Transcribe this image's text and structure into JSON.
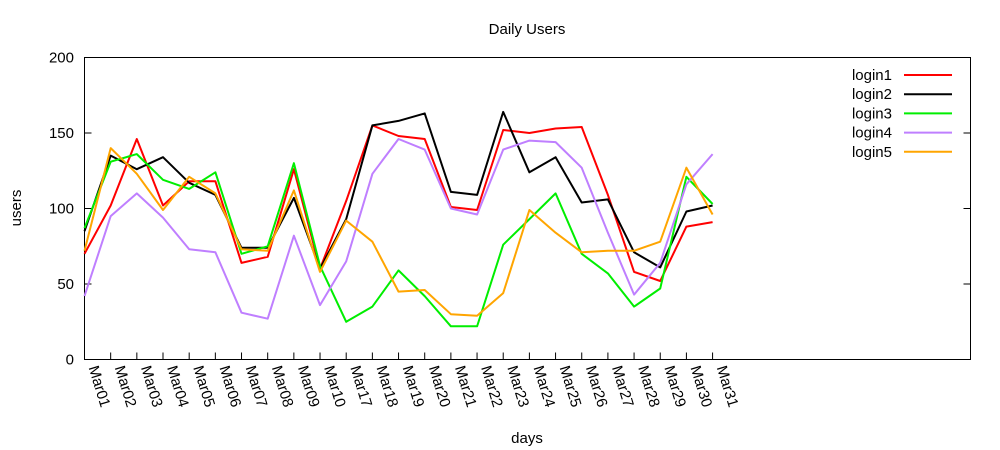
{
  "chart_data": {
    "type": "line",
    "title": "Daily Users",
    "xlabel": "days",
    "ylabel": "users",
    "ylim": [
      0,
      200
    ],
    "yticks": [
      0,
      50,
      100,
      150,
      200
    ],
    "grid": false,
    "legend_position": "top-right",
    "categories": [
      "Mar01",
      "Mar02",
      "Mar03",
      "Mar04",
      "Mar05",
      "Mar06",
      "Mar07",
      "Mar08",
      "Mar09",
      "Mar10",
      "Mar17",
      "Mar18",
      "Mar19",
      "Mar20",
      "Mar21",
      "Mar22",
      "Mar23",
      "Mar24",
      "Mar25",
      "Mar26",
      "Mar27",
      "Mar28",
      "Mar29",
      "Mar30",
      "Mar31"
    ],
    "series": [
      {
        "name": "login1",
        "color": "#ff0000",
        "values": [
          70,
          102,
          146,
          102,
          118,
          118,
          64,
          68,
          126,
          60,
          105,
          155,
          148,
          146,
          101,
          99,
          152,
          150,
          153,
          154,
          109,
          58,
          52,
          88,
          91
        ]
      },
      {
        "name": "login2",
        "color": "#000000",
        "values": [
          85,
          135,
          126,
          134,
          117,
          109,
          74,
          74,
          107,
          60,
          93,
          155,
          158,
          163,
          111,
          109,
          164,
          124,
          134,
          104,
          106,
          71,
          61,
          98,
          102
        ]
      },
      {
        "name": "login3",
        "color": "#00ee00",
        "values": [
          87,
          131,
          136,
          119,
          113,
          124,
          70,
          75,
          130,
          62,
          25,
          35,
          59,
          42,
          22,
          22,
          76,
          93,
          110,
          70,
          57,
          35,
          47,
          121,
          103
        ]
      },
      {
        "name": "login4",
        "color": "#bf7fff",
        "values": [
          42,
          95,
          110,
          94,
          73,
          71,
          31,
          27,
          82,
          36,
          65,
          123,
          146,
          139,
          100,
          96,
          139,
          145,
          144,
          127,
          84,
          43,
          64,
          116,
          136
        ]
      },
      {
        "name": "login5",
        "color": "#ffa500",
        "values": [
          72,
          140,
          123,
          99,
          121,
          110,
          73,
          72,
          112,
          58,
          92,
          78,
          45,
          46,
          30,
          29,
          44,
          99,
          84,
          71,
          72,
          72,
          78,
          127,
          96
        ]
      }
    ]
  }
}
